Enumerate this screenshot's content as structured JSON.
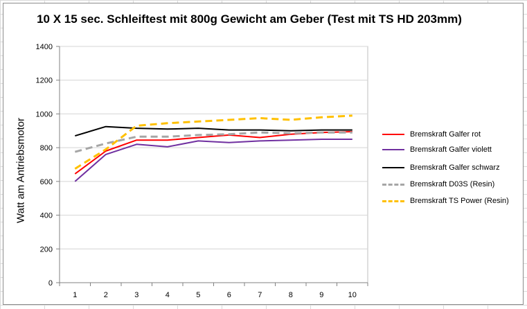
{
  "chart_data": {
    "type": "line",
    "title": "10 X 15 sec. Schleiftest mit 800g Gewicht am Geber (Test mit TS HD 203mm)",
    "xlabel": "",
    "ylabel": "Watt am Antriebsmotor",
    "x": [
      1,
      2,
      3,
      4,
      5,
      6,
      7,
      8,
      9,
      10
    ],
    "ylim": [
      0,
      1400
    ],
    "yticks": [
      0,
      200,
      400,
      600,
      800,
      1000,
      1200,
      1400
    ],
    "grid": true,
    "legend_position": "right",
    "series": [
      {
        "name": "Bremskraft Galfer rot",
        "color": "#ff0000",
        "dash": "solid",
        "values": [
          645,
          780,
          845,
          845,
          860,
          875,
          860,
          880,
          890,
          895
        ]
      },
      {
        "name": "Bremskraft Galfer violett",
        "color": "#7030a0",
        "dash": "solid",
        "values": [
          600,
          760,
          820,
          805,
          840,
          830,
          840,
          845,
          850,
          850
        ]
      },
      {
        "name": "Bremskraft Galfer schwarz",
        "color": "#000000",
        "dash": "solid",
        "values": [
          870,
          925,
          915,
          910,
          915,
          905,
          905,
          900,
          905,
          905
        ]
      },
      {
        "name": "Bremskraft D03S (Resin)",
        "color": "#a6a6a6",
        "dash": "dashed",
        "values": [
          775,
          825,
          865,
          865,
          875,
          880,
          890,
          885,
          890,
          890
        ]
      },
      {
        "name": "Bremskraft TS Power (Resin)",
        "color": "#ffc000",
        "dash": "dashed",
        "values": [
          675,
          790,
          930,
          945,
          955,
          965,
          975,
          965,
          980,
          990
        ]
      }
    ]
  }
}
